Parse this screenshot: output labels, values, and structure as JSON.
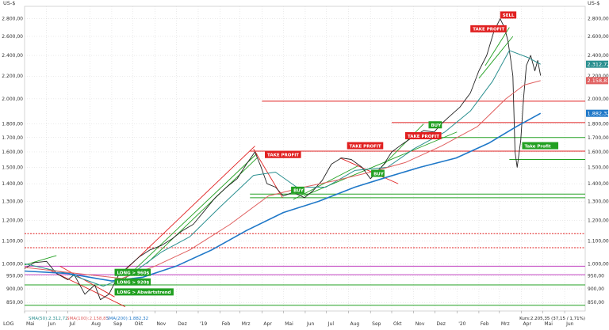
{
  "chart_data": {
    "type": "line",
    "currency_label": "US-$",
    "y_scale": "log",
    "ylim": [
      820,
      2950
    ],
    "y_ticks": [
      850,
      900,
      950,
      1000,
      1100,
      1200,
      1300,
      1400,
      1500,
      1600,
      1700,
      1800,
      2000,
      2200,
      2400,
      2600,
      2800
    ],
    "y_tick_labels": [
      "850,00",
      "900,00",
      "950,00",
      "1.000,00",
      "1.100,00",
      "1.200,00",
      "1.300,00",
      "1.400,00",
      "1.500,00",
      "1.600,00",
      "1.700,00",
      "1.800,00",
      "2.000,00",
      "2.200,00",
      "2.400,00",
      "2.600,00",
      "2.800,00"
    ],
    "x_range": [
      "2018-05-01",
      "2020-06-30"
    ],
    "x_ticks": [
      {
        "date": "2018-05-01",
        "label": "Mai"
      },
      {
        "date": "2018-06-01",
        "label": "Jun"
      },
      {
        "date": "2018-07-01",
        "label": "Jul"
      },
      {
        "date": "2018-08-01",
        "label": "Aug"
      },
      {
        "date": "2018-09-01",
        "label": "Sep"
      },
      {
        "date": "2018-10-01",
        "label": "Okt"
      },
      {
        "date": "2018-11-01",
        "label": "Nov"
      },
      {
        "date": "2018-12-01",
        "label": "Dez"
      },
      {
        "date": "2019-01-01",
        "label": "'19"
      },
      {
        "date": "2019-02-01",
        "label": "Feb"
      },
      {
        "date": "2019-03-01",
        "label": "Mrz"
      },
      {
        "date": "2019-04-01",
        "label": "Apr"
      },
      {
        "date": "2019-05-01",
        "label": "Mai"
      },
      {
        "date": "2019-06-01",
        "label": "Jun"
      },
      {
        "date": "2019-07-01",
        "label": "Jul"
      },
      {
        "date": "2019-08-01",
        "label": "Aug"
      },
      {
        "date": "2019-09-01",
        "label": "Sep"
      },
      {
        "date": "2019-10-01",
        "label": "Okt"
      },
      {
        "date": "2019-11-01",
        "label": "Nov"
      },
      {
        "date": "2019-12-01",
        "label": "Dez"
      },
      {
        "date": "2020-01-01",
        "label": "'20"
      },
      {
        "date": "2020-02-01",
        "label": "Feb"
      },
      {
        "date": "2020-03-01",
        "label": "Mrz"
      },
      {
        "date": "2020-04-01",
        "label": "Apr"
      },
      {
        "date": "2020-05-01",
        "label": "Mai"
      },
      {
        "date": "2020-06-01",
        "label": "Jun"
      }
    ],
    "log_label": "LOG",
    "series": [
      {
        "name": "Kurs",
        "color": "#222222",
        "points": [
          [
            "2018-05-01",
            980
          ],
          [
            "2018-05-15",
            1005
          ],
          [
            "2018-06-01",
            1010
          ],
          [
            "2018-06-15",
            960
          ],
          [
            "2018-07-01",
            935
          ],
          [
            "2018-07-10",
            955
          ],
          [
            "2018-07-25",
            880
          ],
          [
            "2018-08-08",
            915
          ],
          [
            "2018-08-16",
            860
          ],
          [
            "2018-08-28",
            880
          ],
          [
            "2018-09-10",
            950
          ],
          [
            "2018-09-25",
            990
          ],
          [
            "2018-10-10",
            1030
          ],
          [
            "2018-10-25",
            1060
          ],
          [
            "2018-11-10",
            1080
          ],
          [
            "2018-11-25",
            1110
          ],
          [
            "2018-12-10",
            1150
          ],
          [
            "2018-12-25",
            1180
          ],
          [
            "2019-01-10",
            1250
          ],
          [
            "2019-01-25",
            1320
          ],
          [
            "2019-02-10",
            1380
          ],
          [
            "2019-02-25",
            1430
          ],
          [
            "2019-03-10",
            1520
          ],
          [
            "2019-03-22",
            1600
          ],
          [
            "2019-03-30",
            1510
          ],
          [
            "2019-04-08",
            1400
          ],
          [
            "2019-04-20",
            1380
          ],
          [
            "2019-05-01",
            1330
          ],
          [
            "2019-05-15",
            1350
          ],
          [
            "2019-05-31",
            1320
          ],
          [
            "2019-06-12",
            1360
          ],
          [
            "2019-06-25",
            1420
          ],
          [
            "2019-07-08",
            1520
          ],
          [
            "2019-07-22",
            1560
          ],
          [
            "2019-08-05",
            1550
          ],
          [
            "2019-08-20",
            1500
          ],
          [
            "2019-09-01",
            1430
          ],
          [
            "2019-09-10",
            1470
          ],
          [
            "2019-09-20",
            1520
          ],
          [
            "2019-10-01",
            1600
          ],
          [
            "2019-10-15",
            1650
          ],
          [
            "2019-10-30",
            1700
          ],
          [
            "2019-11-15",
            1750
          ],
          [
            "2019-11-30",
            1740
          ],
          [
            "2019-12-10",
            1800
          ],
          [
            "2019-12-20",
            1850
          ],
          [
            "2020-01-05",
            1930
          ],
          [
            "2020-01-20",
            2050
          ],
          [
            "2020-02-01",
            2250
          ],
          [
            "2020-02-12",
            2400
          ],
          [
            "2020-02-22",
            2650
          ],
          [
            "2020-03-02",
            2800
          ],
          [
            "2020-03-08",
            2700
          ],
          [
            "2020-03-13",
            2550
          ],
          [
            "2020-03-17",
            2350
          ],
          [
            "2020-03-20",
            2200
          ],
          [
            "2020-03-23",
            1600
          ],
          [
            "2020-03-26",
            1500
          ],
          [
            "2020-03-31",
            1680
          ],
          [
            "2020-04-04",
            2000
          ],
          [
            "2020-04-08",
            2300
          ],
          [
            "2020-04-14",
            2400
          ],
          [
            "2020-04-20",
            2250
          ],
          [
            "2020-04-24",
            2350
          ],
          [
            "2020-04-28",
            2205
          ]
        ]
      },
      {
        "name": "SMA(50)",
        "value_label": "2.312,72",
        "color": "#2a8f8f",
        "points": [
          [
            "2018-05-01",
            1000
          ],
          [
            "2018-07-01",
            960
          ],
          [
            "2018-08-20",
            910
          ],
          [
            "2018-09-25",
            950
          ],
          [
            "2018-11-10",
            1050
          ],
          [
            "2018-12-20",
            1120
          ],
          [
            "2019-02-01",
            1270
          ],
          [
            "2019-03-20",
            1450
          ],
          [
            "2019-04-20",
            1470
          ],
          [
            "2019-05-20",
            1380
          ],
          [
            "2019-06-30",
            1380
          ],
          [
            "2019-08-10",
            1480
          ],
          [
            "2019-09-25",
            1500
          ],
          [
            "2019-11-01",
            1620
          ],
          [
            "2019-12-15",
            1740
          ],
          [
            "2020-01-20",
            1900
          ],
          [
            "2020-02-20",
            2150
          ],
          [
            "2020-03-15",
            2450
          ],
          [
            "2020-04-10",
            2380
          ],
          [
            "2020-04-28",
            2313
          ]
        ]
      },
      {
        "name": "SMA(100)",
        "value_label": "2.158,83",
        "color": "#e06060",
        "points": [
          [
            "2018-05-01",
            985
          ],
          [
            "2018-07-15",
            960
          ],
          [
            "2018-09-15",
            940
          ],
          [
            "2018-11-01",
            990
          ],
          [
            "2018-12-20",
            1060
          ],
          [
            "2019-02-15",
            1180
          ],
          [
            "2019-04-10",
            1330
          ],
          [
            "2019-05-30",
            1380
          ],
          [
            "2019-07-15",
            1420
          ],
          [
            "2019-09-01",
            1470
          ],
          [
            "2019-10-20",
            1530
          ],
          [
            "2019-12-10",
            1640
          ],
          [
            "2020-01-30",
            1780
          ],
          [
            "2020-03-10",
            2000
          ],
          [
            "2020-04-05",
            2120
          ],
          [
            "2020-04-28",
            2159
          ]
        ]
      },
      {
        "name": "SMA(200)",
        "value_label": "1.882,32",
        "color": "#1f78c8",
        "points": [
          [
            "2018-05-01",
            970
          ],
          [
            "2018-07-01",
            960
          ],
          [
            "2018-09-01",
            930
          ],
          [
            "2018-10-15",
            945
          ],
          [
            "2018-12-01",
            990
          ],
          [
            "2019-01-20",
            1060
          ],
          [
            "2019-03-10",
            1150
          ],
          [
            "2019-05-01",
            1240
          ],
          [
            "2019-06-20",
            1300
          ],
          [
            "2019-08-10",
            1380
          ],
          [
            "2019-09-25",
            1440
          ],
          [
            "2019-11-10",
            1500
          ],
          [
            "2019-12-31",
            1560
          ],
          [
            "2020-02-15",
            1660
          ],
          [
            "2020-03-25",
            1780
          ],
          [
            "2020-04-28",
            1882
          ]
        ]
      }
    ],
    "price_label_color": "#2a8f8f",
    "annotations": [
      {
        "text": "SELL",
        "date": "2020-03-02",
        "value": 2840,
        "color": "#e02020"
      },
      {
        "text": "TAKE PROFIT",
        "date": "2020-01-20",
        "value": 2680,
        "color": "#e02020"
      },
      {
        "text": "TAKE PROFIT",
        "date": "2019-04-05",
        "value": 1580,
        "color": "#e02020"
      },
      {
        "text": "TAKE PROFIT",
        "date": "2019-07-30",
        "value": 1640,
        "color": "#e02020"
      },
      {
        "text": "TAKE PROFIT",
        "date": "2019-10-20",
        "value": 1710,
        "color": "#e02020"
      },
      {
        "text": "BUY",
        "date": "2019-05-12",
        "value": 1360,
        "color": "#22a022"
      },
      {
        "text": "BUY",
        "date": "2019-09-02",
        "value": 1460,
        "color": "#22a022"
      },
      {
        "text": "BUY",
        "date": "2019-11-22",
        "value": 1790,
        "color": "#22a022"
      },
      {
        "text": "Take Profit",
        "date": "2020-04-02",
        "value": 1640,
        "color": "#22a022"
      },
      {
        "text": "LONG > 960$",
        "date": "2018-09-05",
        "value": 963,
        "color": "#22a022"
      },
      {
        "text": "LONG > 920$",
        "date": "2018-09-05",
        "value": 925,
        "color": "#22a022"
      },
      {
        "text": "LONG > Abwärtstrend",
        "date": "2018-09-05",
        "value": 887,
        "color": "#22a022"
      }
    ],
    "horizontal_levels": [
      {
        "value": 1980,
        "color": "#e02020",
        "from": "2019-04-01"
      },
      {
        "value": 1810,
        "color": "#e02020",
        "from": "2019-10-01"
      },
      {
        "value": 1700,
        "color": "#22a022",
        "from": "2019-12-01"
      },
      {
        "value": 1605,
        "color": "#e02020",
        "from": "2019-03-15"
      },
      {
        "value": 1550,
        "color": "#22a022",
        "from": "2020-03-15"
      },
      {
        "value": 1340,
        "color": "#22a022",
        "from": "2019-03-15"
      },
      {
        "value": 1320,
        "color": "#22a022",
        "from": "2019-03-15"
      },
      {
        "value": 1135,
        "color": "#e02020",
        "from": "2018-05-01",
        "dashed": true
      },
      {
        "value": 1070,
        "color": "#e02020",
        "from": "2018-05-01",
        "dashed": true
      },
      {
        "value": 990,
        "color": "#c040c0",
        "from": "2018-05-01"
      },
      {
        "value": 955,
        "color": "#c040c0",
        "from": "2018-05-01"
      },
      {
        "value": 915,
        "color": "#22a022",
        "from": "2018-05-01"
      },
      {
        "value": 840,
        "color": "#22a022",
        "from": "2018-05-01"
      }
    ],
    "trend_lines": [
      {
        "from": [
          "2018-05-01",
          995
        ],
        "to": [
          "2018-06-15",
          1035
        ],
        "color": "#22a022"
      },
      {
        "from": [
          "2018-06-01",
          980
        ],
        "to": [
          "2018-09-20",
          835
        ],
        "color": "#e02020"
      },
      {
        "from": [
          "2018-06-20",
          990
        ],
        "to": [
          "2018-09-05",
          870
        ],
        "color": "#e02020"
      },
      {
        "from": [
          "2018-09-15",
          960
        ],
        "to": [
          "2019-03-22",
          1640
        ],
        "color": "#e02020"
      },
      {
        "from": [
          "2018-09-20",
          940
        ],
        "to": [
          "2019-03-25",
          1590
        ],
        "color": "#22a022"
      },
      {
        "from": [
          "2018-10-20",
          1000
        ],
        "to": [
          "2019-03-25",
          1560
        ],
        "color": "#22a022"
      },
      {
        "from": [
          "2019-03-20",
          1620
        ],
        "to": [
          "2019-04-30",
          1320
        ],
        "color": "#e02020"
      },
      {
        "from": [
          "2019-05-15",
          1310
        ],
        "to": [
          "2019-08-15",
          1510
        ],
        "color": "#22a022"
      },
      {
        "from": [
          "2019-07-20",
          1560
        ],
        "to": [
          "2019-10-10",
          1400
        ],
        "color": "#e02020"
      },
      {
        "from": [
          "2019-05-30",
          1330
        ],
        "to": [
          "2020-01-01",
          1740
        ],
        "color": "#22a022"
      },
      {
        "from": [
          "2019-09-05",
          1450
        ],
        "to": [
          "2019-11-15",
          1800
        ],
        "color": "#22a022"
      },
      {
        "from": [
          "2020-02-01",
          2180
        ],
        "to": [
          "2020-03-20",
          2600
        ],
        "color": "#22a022"
      },
      {
        "from": [
          "2020-02-10",
          2300
        ],
        "to": [
          "2020-03-15",
          2700
        ],
        "color": "#22a022"
      }
    ],
    "footer": {
      "sma50": "SMA(50):2.312,72",
      "sma100": "SMA(100):2.158,83",
      "sma200": "SMA(200):1.882,32",
      "kurs": "Kurs:2.205,35 (37,15 / 1,71%)"
    }
  }
}
